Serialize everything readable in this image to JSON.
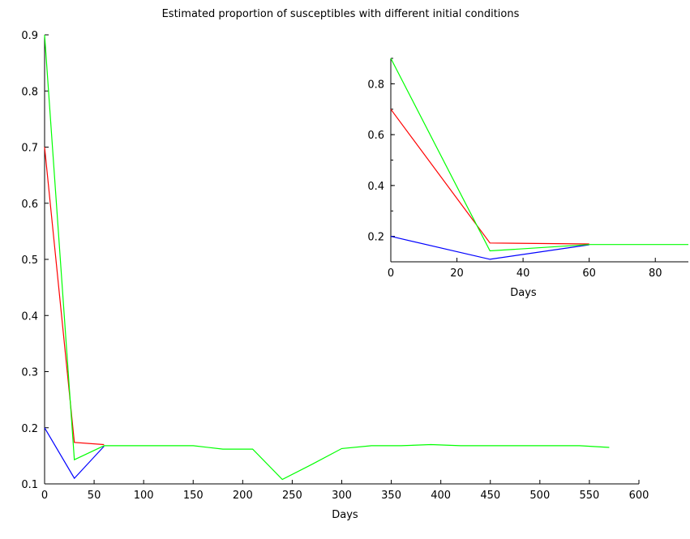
{
  "chart_data": [
    {
      "type": "line",
      "title": "Estimated proportion of susceptibles with different initial conditions",
      "xlabel": "Days",
      "ylabel": "",
      "xlim": [
        0,
        600
      ],
      "ylim": [
        0.1,
        0.9
      ],
      "xticks": [
        0,
        50,
        100,
        150,
        200,
        250,
        300,
        350,
        400,
        450,
        500,
        550,
        600
      ],
      "yticks": [
        0.1,
        0.2,
        0.3,
        0.4,
        0.5,
        0.6,
        0.7,
        0.8,
        0.9
      ],
      "ytick_labels": [
        "0.1",
        "0.2",
        "0.3",
        "0.4",
        "0.5",
        "0.6",
        "0.7",
        "0.8",
        "0.9"
      ],
      "grid": false,
      "legend": "none",
      "series": [
        {
          "color": "#0000ff",
          "x": [
            0,
            30,
            60
          ],
          "y": [
            0.2,
            0.11,
            0.167
          ]
        },
        {
          "color": "#ff0000",
          "x": [
            0,
            30,
            60
          ],
          "y": [
            0.7,
            0.174,
            0.17
          ]
        },
        {
          "color": "#00ff00",
          "x": [
            0,
            30,
            60,
            90,
            120,
            150,
            180,
            210,
            240,
            270,
            300,
            330,
            360,
            390,
            420,
            450,
            480,
            510,
            540,
            570
          ],
          "y": [
            0.9,
            0.143,
            0.168,
            0.168,
            0.168,
            0.168,
            0.162,
            0.162,
            0.108,
            0.135,
            0.163,
            0.168,
            0.168,
            0.17,
            0.168,
            0.168,
            0.168,
            0.168,
            0.168,
            0.165
          ]
        }
      ]
    },
    {
      "type": "line",
      "title": "",
      "xlabel": "Days",
      "ylabel": "",
      "xlim": [
        0,
        90
      ],
      "ylim": [
        0.1,
        0.9
      ],
      "xticks": [
        0,
        20,
        40,
        60,
        80
      ],
      "yticks": [
        0.2,
        0.4,
        0.6,
        0.8
      ],
      "ytick_labels": [
        "0.2",
        "0.4",
        "0.6",
        "0.8"
      ],
      "grid": false,
      "legend": "none",
      "series": [
        {
          "color": "#0000ff",
          "x": [
            0,
            30,
            60
          ],
          "y": [
            0.2,
            0.11,
            0.167
          ]
        },
        {
          "color": "#ff0000",
          "x": [
            0,
            30,
            60
          ],
          "y": [
            0.7,
            0.174,
            0.17
          ]
        },
        {
          "color": "#00ff00",
          "x": [
            0,
            30,
            60,
            90
          ],
          "y": [
            0.9,
            0.143,
            0.168,
            0.168
          ]
        }
      ]
    }
  ]
}
